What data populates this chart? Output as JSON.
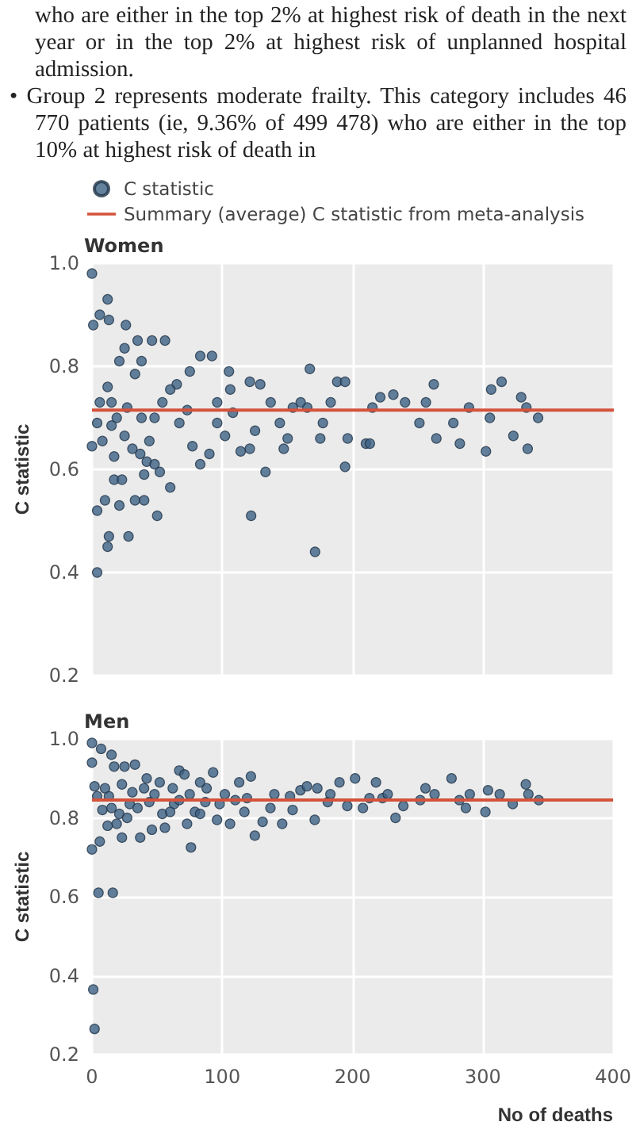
{
  "chart_data": [
    {
      "type": "scatter",
      "title": "Women",
      "ylabel": "C statistic",
      "annotations": [
        "who are either in the top 2% at highest risk of death in the next year or in the top 2% at highest risk of unplanned hospital admission.",
        "• Group 2 represents moderate frailty. This category includes 46 770 patients (ie, 9.36% of 499 478) who are either in the top 10% at highest risk of death in"
      ],
      "xlim": [
        0,
        400
      ],
      "xticks": [
        0,
        100,
        200,
        300,
        400
      ],
      "ylim": [
        0.2,
        1.0
      ],
      "yticks": [
        0.2,
        0.4,
        0.6,
        0.8,
        {
          "value": 1,
          "label": "1.0"
        }
      ],
      "tick_labels": "y",
      "grid": true,
      "legend": "top left",
      "marker": "circle",
      "ref_lines": [
        {
          "axis": "y",
          "value": 0.715,
          "label": "Summary (average) C statistic from meta-analysis",
          "color": "#d4523b"
        }
      ],
      "series": [
        {
          "name": "C statistic",
          "color": "#3d6185",
          "x": [
            0,
            1,
            6,
            12,
            13,
            26,
            4,
            28,
            13,
            12,
            0,
            4,
            10,
            21,
            33,
            50,
            40,
            17,
            23,
            60,
            56,
            46,
            35,
            83,
            92,
            105,
            122,
            171,
            167,
            133,
            194,
            188,
            194,
            221,
            231,
            251,
            256,
            262,
            264,
            277,
            282,
            289,
            305,
            302,
            306,
            314,
            323,
            329,
            334,
            333,
            342,
            210,
            215,
            240,
            196,
            183,
            165,
            160,
            175,
            150,
            154,
            144,
            137,
            129,
            121,
            125,
            121,
            114,
            106,
            102,
            96,
            90,
            83,
            77,
            73,
            67,
            65,
            60,
            54,
            48,
            44,
            42,
            37,
            31,
            25,
            19,
            15,
            12,
            8,
            6,
            4,
            17,
            27,
            33,
            38,
            48,
            52,
            40,
            21,
            25,
            15,
            38,
            75,
            96,
            108,
            147,
            213,
            177
          ],
          "values": [
            0.98,
            0.88,
            0.9,
            0.93,
            0.89,
            0.88,
            0.4,
            0.47,
            0.47,
            0.45,
            0.645,
            0.52,
            0.54,
            0.53,
            0.54,
            0.51,
            0.54,
            0.58,
            0.58,
            0.565,
            0.85,
            0.85,
            0.85,
            0.82,
            0.82,
            0.79,
            0.51,
            0.44,
            0.795,
            0.595,
            0.605,
            0.77,
            0.77,
            0.74,
            0.745,
            0.69,
            0.73,
            0.765,
            0.66,
            0.69,
            0.65,
            0.72,
            0.7,
            0.635,
            0.755,
            0.77,
            0.665,
            0.74,
            0.64,
            0.72,
            0.7,
            0.65,
            0.72,
            0.73,
            0.66,
            0.73,
            0.72,
            0.73,
            0.66,
            0.66,
            0.72,
            0.69,
            0.73,
            0.765,
            0.77,
            0.675,
            0.64,
            0.635,
            0.755,
            0.665,
            0.73,
            0.63,
            0.61,
            0.645,
            0.715,
            0.69,
            0.765,
            0.755,
            0.73,
            0.7,
            0.655,
            0.615,
            0.63,
            0.64,
            0.665,
            0.7,
            0.73,
            0.76,
            0.655,
            0.73,
            0.69,
            0.625,
            0.72,
            0.785,
            0.81,
            0.61,
            0.595,
            0.59,
            0.81,
            0.835,
            0.685,
            0.7,
            0.79,
            0.69,
            0.71,
            0.64,
            0.65,
            0.69
          ]
        }
      ]
    },
    {
      "type": "scatter",
      "title": "Men",
      "ylabel": "C statistic",
      "xlabel": "No of deaths",
      "xlim": [
        0,
        400
      ],
      "xticks": [
        0,
        100,
        200,
        300,
        400
      ],
      "ylim": [
        0.2,
        1.0
      ],
      "yticks": [
        0.2,
        0.4,
        0.6,
        0.8,
        {
          "value": 1,
          "label": "1.0"
        }
      ],
      "grid": true,
      "marker": "circle",
      "ref_lines": [
        {
          "axis": "y",
          "value": 0.845,
          "color": "#d4523b"
        }
      ],
      "series": [
        {
          "color": "#3d6185",
          "x": [
            0,
            0,
            1,
            2,
            5,
            16,
            7,
            15,
            0,
            2,
            6,
            12,
            17,
            25,
            33,
            23,
            37,
            46,
            56,
            67,
            71,
            76,
            93,
            62,
            52,
            42,
            29,
            21,
            13,
            35,
            44,
            54,
            63,
            73,
            79,
            87,
            96,
            106,
            102,
            113,
            122,
            125,
            131,
            137,
            146,
            154,
            160,
            165,
            173,
            171,
            181,
            190,
            202,
            196,
            208,
            218,
            223,
            233,
            239,
            252,
            256,
            263,
            276,
            282,
            287,
            290,
            302,
            304,
            313,
            323,
            333,
            335,
            343,
            117,
            110,
            88,
            83,
            75,
            48,
            40,
            31,
            23,
            10,
            8,
            19,
            27,
            60,
            67,
            83,
            98,
            119,
            140,
            152,
            183,
            213,
            227,
            4,
            15
          ],
          "values": [
            0.99,
            0.72,
            0.365,
            0.265,
            0.61,
            0.61,
            0.975,
            0.96,
            0.94,
            0.88,
            0.74,
            0.78,
            0.93,
            0.93,
            0.935,
            0.75,
            0.75,
            0.77,
            0.775,
            0.92,
            0.91,
            0.725,
            0.915,
            0.875,
            0.89,
            0.9,
            0.835,
            0.81,
            0.855,
            0.825,
            0.84,
            0.81,
            0.835,
            0.785,
            0.815,
            0.84,
            0.795,
            0.785,
            0.86,
            0.89,
            0.905,
            0.755,
            0.79,
            0.825,
            0.785,
            0.82,
            0.87,
            0.88,
            0.875,
            0.795,
            0.84,
            0.89,
            0.9,
            0.83,
            0.825,
            0.89,
            0.85,
            0.8,
            0.83,
            0.845,
            0.875,
            0.86,
            0.9,
            0.845,
            0.825,
            0.86,
            0.815,
            0.87,
            0.86,
            0.835,
            0.885,
            0.86,
            0.845,
            0.815,
            0.845,
            0.875,
            0.81,
            0.86,
            0.86,
            0.875,
            0.865,
            0.885,
            0.875,
            0.82,
            0.785,
            0.8,
            0.815,
            0.845,
            0.89,
            0.835,
            0.85,
            0.86,
            0.855,
            0.86,
            0.85,
            0.86,
            0.855,
            0.825
          ]
        }
      ]
    }
  ]
}
